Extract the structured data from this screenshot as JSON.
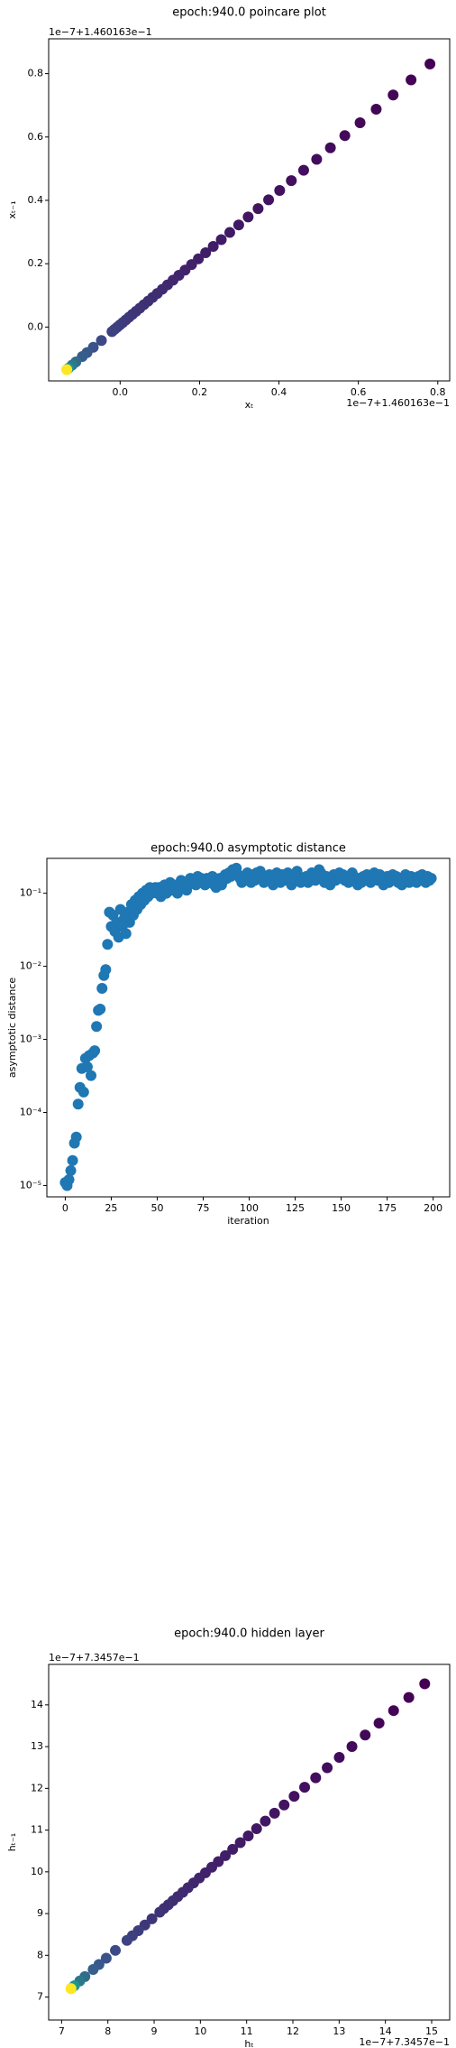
{
  "chart_data": [
    {
      "type": "scatter",
      "title": "epoch:940.0 poincare plot",
      "xlabel": "xₜ",
      "ylabel": "xₜ₋₁",
      "x_offset": "1e−7+1.460163e−1",
      "y_offset": "1e−7+1.460163e−1",
      "cmap": "viridis",
      "x": [
        0.7803,
        0.7327,
        0.6876,
        0.6449,
        0.6043,
        0.5659,
        0.5295,
        0.495,
        0.4622,
        0.4312,
        0.4018,
        0.3739,
        0.3475,
        0.3224,
        0.2986,
        0.2761,
        0.2547,
        0.2345,
        0.2153,
        0.1971,
        0.1799,
        0.1635,
        0.148,
        0.1333,
        0.1194,
        0.1062,
        0.0937,
        0.0818,
        0.0706,
        0.0599,
        0.0498,
        0.0402,
        0.0311,
        0.0225,
        0.0143,
        0.0066,
        -0.0007,
        -0.0077,
        -0.0143,
        -0.0205,
        -0.0472,
        -0.0676,
        -0.0833,
        -0.0953,
        -0.1115,
        -0.121,
        -0.1299,
        -0.1342,
        -0.1345
      ],
      "y": [
        0.8305,
        0.7803,
        0.7327,
        0.6876,
        0.6449,
        0.6043,
        0.5659,
        0.5295,
        0.495,
        0.4622,
        0.4312,
        0.4018,
        0.3739,
        0.3475,
        0.3224,
        0.2986,
        0.2761,
        0.2547,
        0.2345,
        0.2153,
        0.1971,
        0.1799,
        0.1635,
        0.148,
        0.1333,
        0.1194,
        0.1062,
        0.0937,
        0.0818,
        0.0706,
        0.0599,
        0.0498,
        0.0402,
        0.0311,
        0.0225,
        0.0143,
        0.0066,
        -0.0007,
        -0.0077,
        -0.0143,
        -0.0424,
        -0.0639,
        -0.0805,
        -0.0932,
        -0.1102,
        -0.1203,
        -0.1296,
        -0.1342,
        -0.1345
      ],
      "c": [
        1,
        2,
        3,
        4,
        5,
        6,
        7,
        8,
        9,
        10,
        11,
        12,
        13,
        14,
        15,
        16,
        17,
        18,
        19,
        20,
        21,
        22,
        23,
        24,
        25,
        26,
        27,
        28,
        29,
        30,
        31,
        32,
        33,
        34,
        35,
        36,
        37,
        38,
        39,
        40,
        45,
        50,
        55,
        60,
        70,
        80,
        100,
        150,
        199
      ],
      "xlim": [
        -0.18,
        0.83
      ],
      "ylim": [
        -0.17,
        0.91
      ],
      "xticks": [
        {
          "value": 0,
          "label": "0.0"
        },
        {
          "value": 0.2,
          "label": "0.2"
        },
        {
          "value": 0.4,
          "label": "0.4"
        },
        {
          "value": 0.6,
          "label": "0.6"
        },
        {
          "value": 0.8,
          "label": "0.8"
        }
      ],
      "yticks": [
        {
          "value": 0,
          "label": "0.0"
        },
        {
          "value": 0.2,
          "label": "0.2"
        },
        {
          "value": 0.4,
          "label": "0.4"
        },
        {
          "value": 0.6,
          "label": "0.6"
        },
        {
          "value": 0.8,
          "label": "0.8"
        }
      ]
    },
    {
      "type": "scatter",
      "title": "epoch:940.0 asymptotic distance",
      "xlabel": "iteration",
      "ylabel": "asymptotic distance",
      "color": "#1f77b4",
      "yscale": "log",
      "x": [
        0,
        1,
        2,
        3,
        4,
        5,
        6,
        7,
        8,
        9,
        10,
        11,
        12,
        13,
        14,
        15,
        16,
        17,
        18,
        19,
        20,
        21,
        22,
        23,
        24,
        25,
        26,
        27,
        28,
        29,
        30,
        31,
        32,
        33,
        34,
        35,
        36,
        37,
        38,
        39,
        40,
        41,
        42,
        43,
        44,
        45,
        46,
        47,
        48,
        49,
        50,
        51,
        52,
        53,
        54,
        55,
        56,
        57,
        58,
        59,
        60,
        61,
        62,
        63,
        64,
        65,
        66,
        67,
        68,
        69,
        70,
        71,
        72,
        73,
        74,
        75,
        76,
        77,
        78,
        79,
        80,
        81,
        82,
        83,
        84,
        85,
        86,
        87,
        88,
        89,
        90,
        91,
        92,
        93,
        94,
        95,
        96,
        97,
        98,
        99,
        100,
        101,
        102,
        103,
        104,
        105,
        106,
        107,
        108,
        109,
        110,
        111,
        112,
        113,
        114,
        115,
        116,
        117,
        118,
        119,
        120,
        121,
        122,
        123,
        124,
        125,
        126,
        127,
        128,
        129,
        130,
        131,
        132,
        133,
        134,
        135,
        136,
        137,
        138,
        139,
        140,
        141,
        142,
        143,
        144,
        145,
        146,
        147,
        148,
        149,
        150,
        151,
        152,
        153,
        154,
        155,
        156,
        157,
        158,
        159,
        160,
        161,
        162,
        163,
        164,
        165,
        166,
        167,
        168,
        169,
        170,
        171,
        172,
        173,
        174,
        175,
        176,
        177,
        178,
        179,
        180,
        181,
        182,
        183,
        184,
        185,
        186,
        187,
        188,
        189,
        190,
        191,
        192,
        193,
        194,
        195,
        196,
        197,
        198,
        199
      ],
      "y": [
        1.1e-05,
        1e-05,
        1.2e-05,
        1.6e-05,
        2.2e-05,
        3.8e-05,
        4.6e-05,
        0.00013,
        0.00022,
        0.0004,
        0.00019,
        0.00055,
        0.00042,
        0.0006,
        0.00032,
        0.00065,
        0.0007,
        0.0015,
        0.0025,
        0.0026,
        0.005,
        0.0075,
        0.009,
        0.02,
        0.055,
        0.035,
        0.05,
        0.03,
        0.04,
        0.025,
        0.06,
        0.035,
        0.045,
        0.028,
        0.055,
        0.04,
        0.07,
        0.05,
        0.08,
        0.06,
        0.09,
        0.07,
        0.1,
        0.08,
        0.11,
        0.09,
        0.12,
        0.1,
        0.11,
        0.12,
        0.1,
        0.12,
        0.09,
        0.11,
        0.13,
        0.1,
        0.12,
        0.14,
        0.11,
        0.13,
        0.12,
        0.1,
        0.13,
        0.15,
        0.12,
        0.14,
        0.11,
        0.13,
        0.16,
        0.14,
        0.15,
        0.13,
        0.17,
        0.14,
        0.16,
        0.15,
        0.13,
        0.16,
        0.14,
        0.15,
        0.17,
        0.13,
        0.12,
        0.14,
        0.16,
        0.13,
        0.15,
        0.18,
        0.16,
        0.19,
        0.17,
        0.21,
        0.19,
        0.22,
        0.18,
        0.16,
        0.14,
        0.17,
        0.15,
        0.19,
        0.16,
        0.14,
        0.18,
        0.15,
        0.19,
        0.17,
        0.2,
        0.16,
        0.14,
        0.17,
        0.15,
        0.18,
        0.16,
        0.13,
        0.17,
        0.19,
        0.16,
        0.14,
        0.18,
        0.15,
        0.17,
        0.19,
        0.15,
        0.13,
        0.16,
        0.18,
        0.2,
        0.17,
        0.14,
        0.16,
        0.15,
        0.17,
        0.14,
        0.16,
        0.19,
        0.17,
        0.15,
        0.18,
        0.21,
        0.19,
        0.16,
        0.14,
        0.17,
        0.15,
        0.13,
        0.16,
        0.18,
        0.15,
        0.17,
        0.19,
        0.16,
        0.18,
        0.15,
        0.17,
        0.14,
        0.16,
        0.19,
        0.17,
        0.15,
        0.13,
        0.16,
        0.14,
        0.17,
        0.15,
        0.18,
        0.16,
        0.14,
        0.17,
        0.19,
        0.16,
        0.15,
        0.18,
        0.16,
        0.13,
        0.15,
        0.17,
        0.14,
        0.16,
        0.18,
        0.15,
        0.17,
        0.14,
        0.16,
        0.13,
        0.15,
        0.18,
        0.16,
        0.14,
        0.17,
        0.15,
        0.16,
        0.14,
        0.17,
        0.15,
        0.18,
        0.16,
        0.14,
        0.17,
        0.15,
        0.16
      ],
      "xlim": [
        -10,
        209
      ],
      "ylim": [
        7e-06,
        0.3
      ],
      "xticks": [
        0,
        25,
        50,
        75,
        100,
        125,
        150,
        175,
        200
      ],
      "yticks": [
        {
          "value": 1e-05,
          "label": "10⁻⁵"
        },
        {
          "value": 0.0001,
          "label": "10⁻⁴"
        },
        {
          "value": 0.001,
          "label": "10⁻³"
        },
        {
          "value": 0.01,
          "label": "10⁻²"
        },
        {
          "value": 0.1,
          "label": "10⁻¹"
        }
      ]
    },
    {
      "type": "scatter",
      "title": "epoch:940.0 hidden layer",
      "xlabel": "hₜ",
      "ylabel": "hₜ₋₁",
      "x_offset": "1e−7+7.3457e−1",
      "y_offset": "1e−7+7.3457e−1",
      "cmap": "viridis",
      "x": [
        14.85,
        14.506,
        14.177,
        13.863,
        13.563,
        13.277,
        13.003,
        12.742,
        12.493,
        12.254,
        12.027,
        11.81,
        11.603,
        11.404,
        11.215,
        11.035,
        10.862,
        10.698,
        10.54,
        10.389,
        10.246,
        10.109,
        9.978,
        9.853,
        9.734,
        9.62,
        9.511,
        9.407,
        9.308,
        9.213,
        9.122,
        8.953,
        8.799,
        8.658,
        8.53,
        8.413,
        8.162,
        7.965,
        7.807,
        7.682,
        7.504,
        7.392,
        7.277,
        7.208,
        7.2
      ],
      "y": [
        14.506,
        14.177,
        13.863,
        13.563,
        13.277,
        13.003,
        12.742,
        12.493,
        12.254,
        12.027,
        11.81,
        11.603,
        11.404,
        11.215,
        11.035,
        10.862,
        10.698,
        10.54,
        10.389,
        10.246,
        10.109,
        9.978,
        9.853,
        9.734,
        9.62,
        9.511,
        9.407,
        9.308,
        9.213,
        9.122,
        9.035,
        8.874,
        8.727,
        8.592,
        8.47,
        8.358,
        8.119,
        7.931,
        7.78,
        7.66,
        7.491,
        7.384,
        7.273,
        7.207,
        7.2
      ],
      "c": [
        0,
        1,
        2,
        3,
        4,
        5,
        6,
        7,
        8,
        9,
        10,
        11,
        12,
        13,
        14,
        15,
        16,
        17,
        18,
        19,
        20,
        21,
        22,
        23,
        24,
        25,
        26,
        27,
        28,
        29,
        30,
        32,
        34,
        36,
        38,
        40,
        45,
        50,
        55,
        60,
        70,
        80,
        100,
        150,
        199
      ],
      "xlim": [
        6.72,
        15.39
      ],
      "ylim": [
        6.45,
        14.97
      ],
      "xticks": [
        7,
        8,
        9,
        10,
        11,
        12,
        13,
        14,
        15
      ],
      "yticks": [
        7,
        8,
        9,
        10,
        11,
        12,
        13,
        14
      ]
    }
  ]
}
